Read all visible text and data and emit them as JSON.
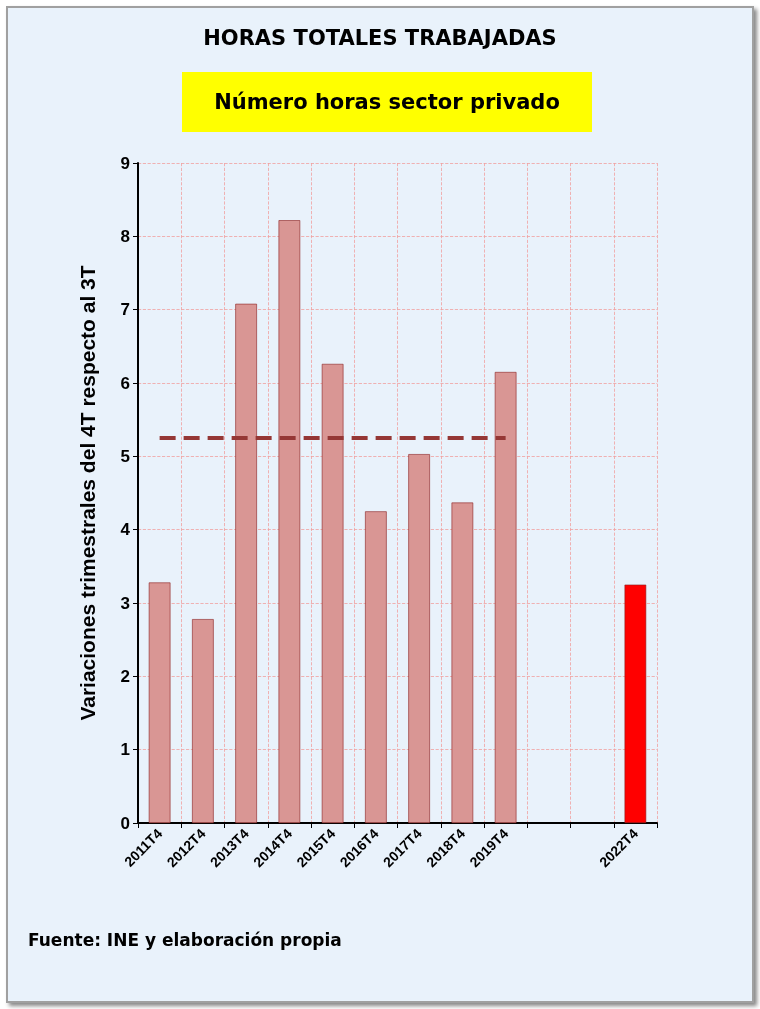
{
  "chart_data": {
    "type": "bar",
    "title": "HORAS TOTALES TRABAJADAS",
    "subtitle": "Número horas sector privado",
    "ylabel": "Variaciones trimestrales del 4T respecto al 3T",
    "categories": [
      "2011T4",
      "2012T4",
      "2013T4",
      "2014T4",
      "2015T4",
      "2016T4",
      "2017T4",
      "2018T4",
      "2019T4",
      null,
      null,
      "2022T4"
    ],
    "series": [
      {
        "colors": [
          "#d99694",
          "#d99694",
          "#d99694",
          "#d99694",
          "#d99694",
          "#d99694",
          "#d99694",
          "#d99694",
          "#d99694",
          "#d99694",
          "#d99694",
          "#ff0000"
        ],
        "values": [
          3.28,
          2.78,
          7.08,
          8.22,
          6.26,
          4.25,
          5.03,
          4.37,
          6.15,
          null,
          null,
          3.25
        ]
      },
      {
        "type": "line",
        "color": "#953735",
        "line_style": "dashed",
        "marker": "none",
        "values": [
          5.25,
          5.25,
          5.25,
          5.25,
          5.25,
          5.25,
          5.25,
          5.25,
          5.25,
          null,
          null,
          null
        ]
      }
    ],
    "ylim": [
      0,
      9
    ],
    "yticks": [
      0,
      1,
      2,
      3,
      4,
      5,
      6,
      7,
      8,
      9
    ],
    "grid": true,
    "annotations": [
      "Fuente: INE y elaboración propia"
    ]
  }
}
